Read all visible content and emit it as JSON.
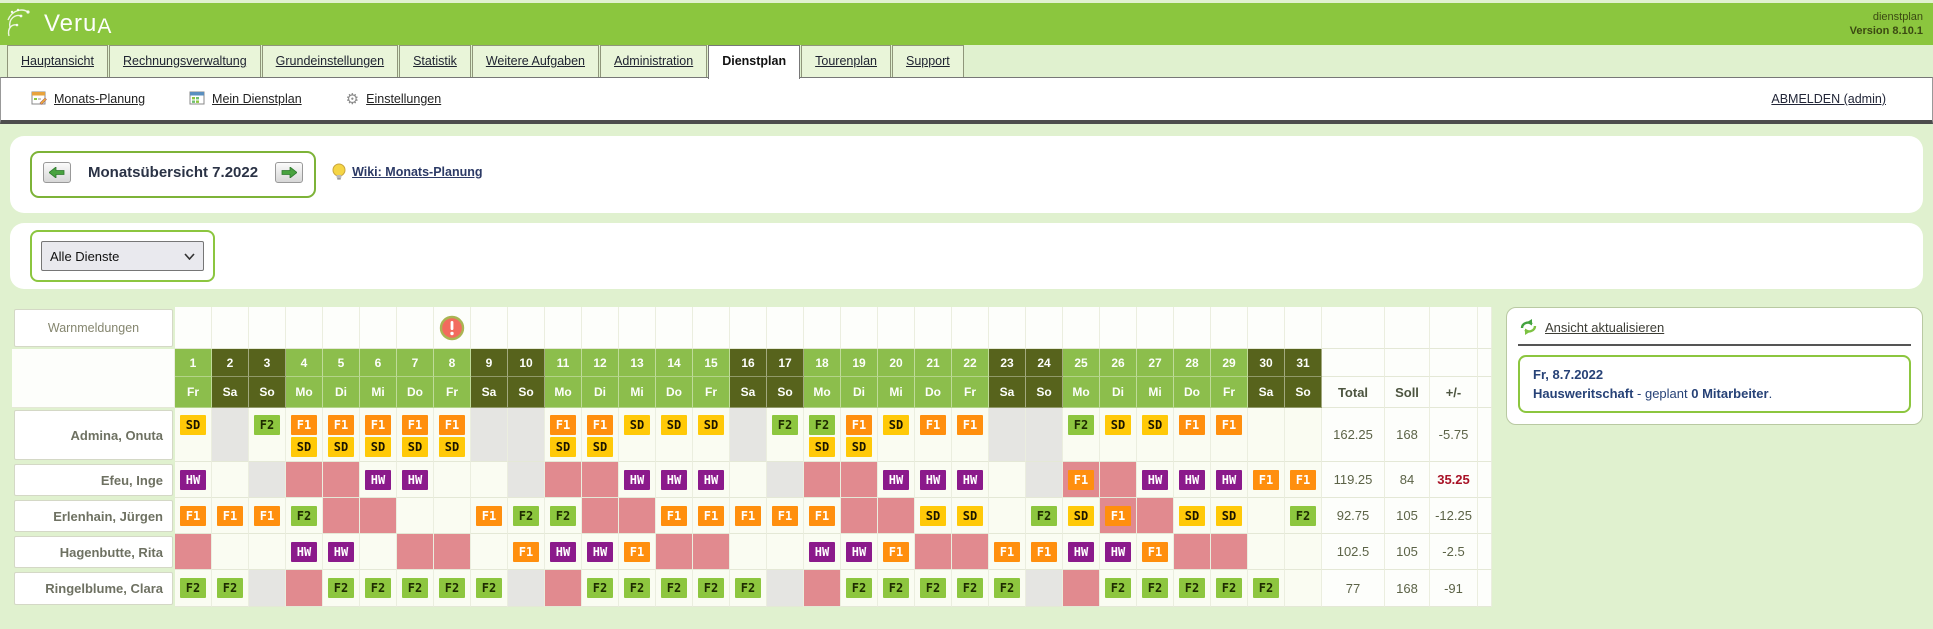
{
  "header": {
    "logo": "VeruA",
    "logo_main": "Veru",
    "logo_suffix": "A",
    "app_label": "dienstplan",
    "version": "Version 8.10.1"
  },
  "tabs": [
    {
      "label": "Hauptansicht",
      "active": false
    },
    {
      "label": "Rechnungsverwaltung",
      "active": false
    },
    {
      "label": "Grundeinstellungen",
      "active": false
    },
    {
      "label": "Statistik",
      "active": false
    },
    {
      "label": "Weitere Aufgaben",
      "active": false
    },
    {
      "label": "Administration",
      "active": false
    },
    {
      "label": "Dienstplan",
      "active": true
    },
    {
      "label": "Tourenplan",
      "active": false
    },
    {
      "label": "Support",
      "active": false
    }
  ],
  "subnav": {
    "items": [
      {
        "label": "Monats-Planung",
        "icon": "calendar-edit-icon"
      },
      {
        "label": "Mein Dienstplan",
        "icon": "calendar-icon"
      },
      {
        "label": "Einstellungen",
        "icon": "gear-icon"
      }
    ],
    "logout": "ABMELDEN (admin)"
  },
  "month_nav": {
    "title": "Monatsübersicht 7.2022",
    "wiki_link": "Wiki: Monats-Planung"
  },
  "filter": {
    "selected": "Alle Dienste"
  },
  "roster": {
    "warn_label": "Warnmeldungen",
    "warning_day": 8,
    "total_headers": [
      "Total",
      "Soll",
      "+/-"
    ],
    "days": [
      {
        "d": "1",
        "wd": "Fr",
        "weekend": false
      },
      {
        "d": "2",
        "wd": "Sa",
        "weekend": true
      },
      {
        "d": "3",
        "wd": "So",
        "weekend": true
      },
      {
        "d": "4",
        "wd": "Mo",
        "weekend": false
      },
      {
        "d": "5",
        "wd": "Di",
        "weekend": false
      },
      {
        "d": "6",
        "wd": "Mi",
        "weekend": false
      },
      {
        "d": "7",
        "wd": "Do",
        "weekend": false
      },
      {
        "d": "8",
        "wd": "Fr",
        "weekend": false
      },
      {
        "d": "9",
        "wd": "Sa",
        "weekend": true
      },
      {
        "d": "10",
        "wd": "So",
        "weekend": true
      },
      {
        "d": "11",
        "wd": "Mo",
        "weekend": false
      },
      {
        "d": "12",
        "wd": "Di",
        "weekend": false
      },
      {
        "d": "13",
        "wd": "Mi",
        "weekend": false
      },
      {
        "d": "14",
        "wd": "Do",
        "weekend": false
      },
      {
        "d": "15",
        "wd": "Fr",
        "weekend": false
      },
      {
        "d": "16",
        "wd": "Sa",
        "weekend": true
      },
      {
        "d": "17",
        "wd": "So",
        "weekend": true
      },
      {
        "d": "18",
        "wd": "Mo",
        "weekend": false
      },
      {
        "d": "19",
        "wd": "Di",
        "weekend": false
      },
      {
        "d": "20",
        "wd": "Mi",
        "weekend": false
      },
      {
        "d": "21",
        "wd": "Do",
        "weekend": false
      },
      {
        "d": "22",
        "wd": "Fr",
        "weekend": false
      },
      {
        "d": "23",
        "wd": "Sa",
        "weekend": true
      },
      {
        "d": "24",
        "wd": "So",
        "weekend": true
      },
      {
        "d": "25",
        "wd": "Mo",
        "weekend": false
      },
      {
        "d": "26",
        "wd": "Di",
        "weekend": false
      },
      {
        "d": "27",
        "wd": "Mi",
        "weekend": false
      },
      {
        "d": "28",
        "wd": "Do",
        "weekend": false
      },
      {
        "d": "29",
        "wd": "Fr",
        "weekend": false
      },
      {
        "d": "30",
        "wd": "Sa",
        "weekend": true
      },
      {
        "d": "31",
        "wd": "So",
        "weekend": true
      }
    ],
    "employees": [
      {
        "name": "Admina, Onuta",
        "tall": true,
        "total": "162.25",
        "soll": "168",
        "diff": "-5.75",
        "diff_red": false,
        "cells": [
          {
            "b": [
              "SD"
            ]
          },
          {
            "bg": "gray"
          },
          {
            "b": [
              "F2"
            ]
          },
          {
            "b": [
              "F1",
              "SD"
            ]
          },
          {
            "b": [
              "F1",
              "SD"
            ]
          },
          {
            "b": [
              "F1",
              "SD"
            ]
          },
          {
            "b": [
              "F1",
              "SD"
            ]
          },
          {
            "b": [
              "F1",
              "SD"
            ]
          },
          {
            "bg": "gray"
          },
          {
            "bg": "gray"
          },
          {
            "b": [
              "F1",
              "SD"
            ]
          },
          {
            "b": [
              "F1",
              "SD"
            ]
          },
          {
            "b": [
              "SD"
            ]
          },
          {
            "b": [
              "SD"
            ]
          },
          {
            "b": [
              "SD"
            ]
          },
          {
            "bg": "gray"
          },
          {
            "b": [
              "F2"
            ]
          },
          {
            "b": [
              "F2",
              "SD"
            ]
          },
          {
            "b": [
              "F1",
              "SD"
            ]
          },
          {
            "b": [
              "SD"
            ]
          },
          {
            "b": [
              "F1"
            ]
          },
          {
            "b": [
              "F1"
            ]
          },
          {
            "bg": "gray"
          },
          {
            "bg": "gray"
          },
          {
            "b": [
              "F2"
            ]
          },
          {
            "b": [
              "SD"
            ]
          },
          {
            "b": [
              "SD"
            ]
          },
          {
            "b": [
              "F1"
            ]
          },
          {
            "b": [
              "F1"
            ]
          },
          {},
          {}
        ]
      },
      {
        "name": "Efeu, Inge",
        "tall": false,
        "total": "119.25",
        "soll": "84",
        "diff": "35.25",
        "diff_red": true,
        "cells": [
          {
            "b": [
              "HW"
            ]
          },
          {},
          {
            "bg": "gray"
          },
          {
            "bg": "pink"
          },
          {
            "bg": "pink"
          },
          {
            "b": [
              "HW"
            ]
          },
          {
            "b": [
              "HW"
            ]
          },
          {},
          {},
          {
            "bg": "gray"
          },
          {
            "bg": "pink"
          },
          {
            "bg": "pink"
          },
          {
            "b": [
              "HW"
            ]
          },
          {
            "b": [
              "HW"
            ]
          },
          {
            "b": [
              "HW"
            ]
          },
          {},
          {
            "bg": "gray"
          },
          {
            "bg": "pink"
          },
          {
            "bg": "pink"
          },
          {
            "b": [
              "HW"
            ]
          },
          {
            "b": [
              "HW"
            ]
          },
          {
            "b": [
              "HW"
            ]
          },
          {},
          {
            "bg": "gray"
          },
          {
            "bg": "pink",
            "b": [
              "F1"
            ]
          },
          {
            "bg": "pink"
          },
          {
            "b": [
              "HW"
            ]
          },
          {
            "b": [
              "HW"
            ]
          },
          {
            "b": [
              "HW"
            ]
          },
          {
            "b": [
              "F1"
            ]
          },
          {
            "b": [
              "F1"
            ]
          }
        ]
      },
      {
        "name": "Erlenhain, Jürgen",
        "tall": false,
        "total": "92.75",
        "soll": "105",
        "diff": "-12.25",
        "diff_red": false,
        "cells": [
          {
            "b": [
              "F1"
            ]
          },
          {
            "b": [
              "F1"
            ]
          },
          {
            "b": [
              "F1"
            ]
          },
          {
            "b": [
              "F2"
            ]
          },
          {
            "bg": "pink"
          },
          {
            "bg": "pink"
          },
          {},
          {},
          {
            "b": [
              "F1"
            ]
          },
          {
            "b": [
              "F2"
            ]
          },
          {
            "b": [
              "F2"
            ]
          },
          {
            "bg": "pink"
          },
          {
            "bg": "pink"
          },
          {
            "b": [
              "F1"
            ]
          },
          {
            "b": [
              "F1"
            ]
          },
          {
            "b": [
              "F1"
            ]
          },
          {
            "b": [
              "F1"
            ]
          },
          {
            "b": [
              "F1"
            ]
          },
          {
            "bg": "pink"
          },
          {
            "bg": "pink"
          },
          {
            "b": [
              "SD"
            ]
          },
          {
            "b": [
              "SD"
            ]
          },
          {},
          {
            "b": [
              "F2"
            ]
          },
          {
            "b": [
              "SD"
            ]
          },
          {
            "bg": "pink",
            "b": [
              "F1"
            ]
          },
          {
            "bg": "pink"
          },
          {
            "b": [
              "SD"
            ]
          },
          {
            "b": [
              "SD"
            ]
          },
          {},
          {
            "b": [
              "F2"
            ]
          }
        ]
      },
      {
        "name": "Hagenbutte, Rita",
        "tall": false,
        "total": "102.5",
        "soll": "105",
        "diff": "-2.5",
        "diff_red": false,
        "cells": [
          {
            "bg": "pink"
          },
          {},
          {},
          {
            "b": [
              "HW"
            ]
          },
          {
            "b": [
              "HW"
            ]
          },
          {},
          {
            "bg": "pink"
          },
          {
            "bg": "pink"
          },
          {},
          {
            "b": [
              "F1"
            ]
          },
          {
            "b": [
              "HW"
            ]
          },
          {
            "b": [
              "HW"
            ]
          },
          {
            "b": [
              "F1"
            ]
          },
          {
            "bg": "pink"
          },
          {
            "bg": "pink"
          },
          {},
          {},
          {
            "b": [
              "HW"
            ]
          },
          {
            "b": [
              "HW"
            ]
          },
          {
            "b": [
              "F1"
            ]
          },
          {
            "bg": "pink"
          },
          {
            "bg": "pink"
          },
          {
            "b": [
              "F1"
            ]
          },
          {
            "b": [
              "F1"
            ]
          },
          {
            "b": [
              "HW"
            ]
          },
          {
            "b": [
              "HW"
            ]
          },
          {
            "b": [
              "F1"
            ]
          },
          {
            "bg": "pink"
          },
          {
            "bg": "pink"
          },
          {},
          {}
        ]
      },
      {
        "name": "Ringelblume, Clara",
        "tall": false,
        "total": "77",
        "soll": "168",
        "diff": "-91",
        "diff_red": false,
        "cells": [
          {
            "b": [
              "F2"
            ]
          },
          {
            "b": [
              "F2"
            ]
          },
          {
            "bg": "gray"
          },
          {
            "bg": "pink"
          },
          {
            "b": [
              "F2"
            ]
          },
          {
            "b": [
              "F2"
            ]
          },
          {
            "b": [
              "F2"
            ]
          },
          {
            "b": [
              "F2"
            ]
          },
          {
            "b": [
              "F2"
            ]
          },
          {
            "bg": "gray"
          },
          {
            "bg": "pink"
          },
          {
            "b": [
              "F2"
            ]
          },
          {
            "b": [
              "F2"
            ]
          },
          {
            "b": [
              "F2"
            ]
          },
          {
            "b": [
              "F2"
            ]
          },
          {
            "b": [
              "F2"
            ]
          },
          {
            "bg": "gray"
          },
          {
            "bg": "pink"
          },
          {
            "b": [
              "F2"
            ]
          },
          {
            "b": [
              "F2"
            ]
          },
          {
            "b": [
              "F2"
            ]
          },
          {
            "b": [
              "F2"
            ]
          },
          {
            "b": [
              "F2"
            ]
          },
          {
            "bg": "gray"
          },
          {
            "bg": "pink"
          },
          {
            "b": [
              "F2"
            ]
          },
          {
            "b": [
              "F2"
            ]
          },
          {
            "b": [
              "F2"
            ]
          },
          {
            "b": [
              "F2"
            ]
          },
          {
            "b": [
              "F2"
            ]
          },
          {}
        ]
      }
    ]
  },
  "side_panel": {
    "refresh_label": "Ansicht aktualisieren",
    "date": "Fr, 8.7.2022",
    "service": "Hausweritschaft",
    "middle": " - geplant ",
    "count": "0 Mitarbeiter",
    "end": "."
  },
  "colors": {
    "header_green": "#8BC63E",
    "page_bg": "#E0F1CF",
    "weekday_green": "#8CBE4C",
    "weekend_olive": "#57631C",
    "cell_pink": "#E18A8F",
    "cell_gray": "#E5E5E2",
    "diff_red": "#A81226",
    "badges": {
      "SD": {
        "bg": "#FFC908",
        "fg": "#1A1400"
      },
      "F1": {
        "bg": "#FF8F0E",
        "fg": "#FFFFFF"
      },
      "F2": {
        "bg": "#8DC63F",
        "fg": "#1E2B00"
      },
      "HW": {
        "bg": "#8B1A8B",
        "fg": "#FFFFFF"
      }
    }
  }
}
